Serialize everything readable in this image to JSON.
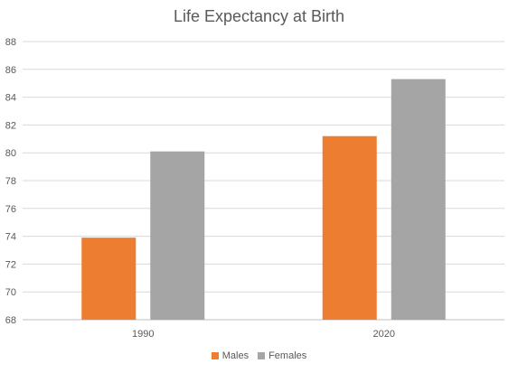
{
  "chart_data": {
    "type": "bar",
    "title": "Life Expectancy at Birth",
    "xlabel": "",
    "ylabel": "",
    "categories": [
      "1990",
      "2020"
    ],
    "series": [
      {
        "name": "Males",
        "values": [
          73.9,
          81.2
        ],
        "color": "#ED7D31"
      },
      {
        "name": "Females",
        "values": [
          80.1,
          85.3
        ],
        "color": "#A5A5A5"
      }
    ],
    "ylim": [
      68,
      88
    ],
    "yticks": [
      "68",
      "70",
      "72",
      "74",
      "76",
      "78",
      "80",
      "82",
      "84",
      "86",
      "88"
    ],
    "grid": true,
    "legend_position": "bottom"
  }
}
